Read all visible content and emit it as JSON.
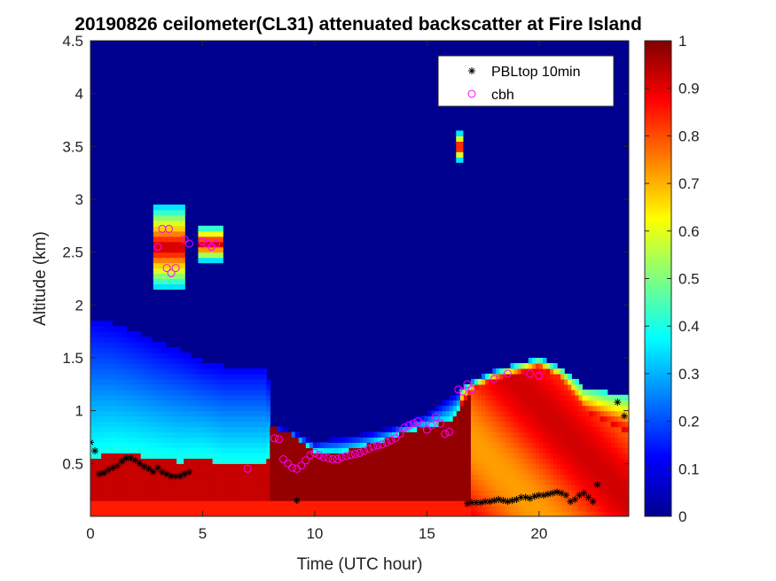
{
  "chart_data": {
    "type": "heatmap",
    "title": "20190826 ceilometer(CL31) attenuated backscatter at Fire Island",
    "xlabel": "Time (UTC hour)",
    "ylabel": "Altitude (km)",
    "xlim": [
      0,
      24
    ],
    "ylim": [
      0,
      4.5
    ],
    "x_ticks": [
      0,
      5,
      10,
      15,
      20
    ],
    "y_ticks": [
      0.5,
      1,
      1.5,
      2,
      2.5,
      3,
      3.5,
      4,
      4.5
    ],
    "colorbar": {
      "colormap": "jet",
      "range": [
        0,
        1
      ],
      "ticks": [
        0,
        0.1,
        0.2,
        0.3,
        0.4,
        0.5,
        0.6,
        0.7,
        0.8,
        0.9,
        1
      ]
    },
    "legend": {
      "placement": "top-right",
      "entries": [
        {
          "label": "PBLtop 10min",
          "marker": "asterisk",
          "color": "#000000"
        },
        {
          "label": "cbh",
          "marker": "circle",
          "color": "#ff00ff"
        }
      ]
    },
    "layer_profile": {
      "time_h": [
        0,
        1,
        2,
        3,
        4,
        5,
        6,
        7,
        7.9,
        8,
        9,
        10,
        11,
        12,
        13,
        14,
        15,
        16,
        17,
        18,
        19,
        20,
        21,
        22,
        23,
        24
      ],
      "boundary_km": [
        1.85,
        1.8,
        1.72,
        1.62,
        1.55,
        1.45,
        1.4,
        1.4,
        1.4,
        0.85,
        0.8,
        0.68,
        0.72,
        0.75,
        0.8,
        0.86,
        0.95,
        1.1,
        1.25,
        1.35,
        1.42,
        1.48,
        1.38,
        1.2,
        1.15,
        1.12
      ],
      "dense_top_km": [
        0.55,
        0.6,
        0.58,
        0.55,
        0.52,
        0.55,
        0.5,
        0.5,
        0.5,
        0.85,
        0.78,
        0.62,
        0.6,
        0.65,
        0.72,
        0.8,
        0.85,
        0.9,
        1.2,
        1.3,
        1.35,
        1.42,
        1.3,
        1.0,
        0.9,
        0.8
      ]
    },
    "elevated_cloud_patches": [
      {
        "t_start": 2.8,
        "t_end": 4.2,
        "alt_low": 2.15,
        "alt_high": 2.9
      },
      {
        "t_start": 4.8,
        "t_end": 5.8,
        "alt_low": 2.4,
        "alt_high": 2.72
      },
      {
        "t_start": 16.3,
        "t_end": 16.6,
        "alt_low": 3.35,
        "alt_high": 3.6
      }
    ],
    "series": [
      {
        "name": "PBLtop 10min",
        "points": [
          [
            0.0,
            0.7
          ],
          [
            0.2,
            0.62
          ],
          [
            0.4,
            0.4
          ],
          [
            0.6,
            0.41
          ],
          [
            0.8,
            0.44
          ],
          [
            1.0,
            0.46
          ],
          [
            1.2,
            0.48
          ],
          [
            1.4,
            0.52
          ],
          [
            1.6,
            0.55
          ],
          [
            1.8,
            0.55
          ],
          [
            2.0,
            0.53
          ],
          [
            2.2,
            0.5
          ],
          [
            2.4,
            0.47
          ],
          [
            2.6,
            0.45
          ],
          [
            2.8,
            0.42
          ],
          [
            3.0,
            0.46
          ],
          [
            3.2,
            0.42
          ],
          [
            3.4,
            0.4
          ],
          [
            3.6,
            0.38
          ],
          [
            3.8,
            0.38
          ],
          [
            4.0,
            0.38
          ],
          [
            4.2,
            0.4
          ],
          [
            4.4,
            0.42
          ],
          [
            9.2,
            0.15
          ],
          [
            16.8,
            0.12
          ],
          [
            17.0,
            0.13
          ],
          [
            17.2,
            0.13
          ],
          [
            17.4,
            0.13
          ],
          [
            17.6,
            0.14
          ],
          [
            17.8,
            0.14
          ],
          [
            18.0,
            0.15
          ],
          [
            18.2,
            0.16
          ],
          [
            18.4,
            0.15
          ],
          [
            18.6,
            0.14
          ],
          [
            18.8,
            0.15
          ],
          [
            19.0,
            0.16
          ],
          [
            19.2,
            0.18
          ],
          [
            19.4,
            0.18
          ],
          [
            19.6,
            0.17
          ],
          [
            19.8,
            0.19
          ],
          [
            20.0,
            0.2
          ],
          [
            20.2,
            0.2
          ],
          [
            20.4,
            0.21
          ],
          [
            20.6,
            0.22
          ],
          [
            20.8,
            0.23
          ],
          [
            21.0,
            0.22
          ],
          [
            21.2,
            0.2
          ],
          [
            21.4,
            0.14
          ],
          [
            21.6,
            0.16
          ],
          [
            21.8,
            0.2
          ],
          [
            22.0,
            0.22
          ],
          [
            22.2,
            0.18
          ],
          [
            22.4,
            0.14
          ],
          [
            22.6,
            0.3
          ],
          [
            23.5,
            1.08
          ],
          [
            23.8,
            0.95
          ]
        ]
      },
      {
        "name": "cbh",
        "points": [
          [
            3.0,
            2.55
          ],
          [
            3.2,
            2.72
          ],
          [
            3.4,
            2.35
          ],
          [
            3.5,
            2.72
          ],
          [
            3.6,
            2.3
          ],
          [
            3.8,
            2.35
          ],
          [
            4.2,
            2.62
          ],
          [
            4.4,
            2.58
          ],
          [
            5.0,
            2.6
          ],
          [
            5.2,
            2.58
          ],
          [
            5.4,
            2.55
          ],
          [
            5.6,
            2.58
          ],
          [
            7.0,
            0.45
          ],
          [
            8.2,
            0.74
          ],
          [
            8.4,
            0.73
          ],
          [
            8.6,
            0.54
          ],
          [
            8.8,
            0.5
          ],
          [
            9.0,
            0.46
          ],
          [
            9.2,
            0.45
          ],
          [
            9.4,
            0.48
          ],
          [
            9.6,
            0.53
          ],
          [
            9.8,
            0.58
          ],
          [
            10.0,
            0.6
          ],
          [
            10.2,
            0.58
          ],
          [
            10.4,
            0.56
          ],
          [
            10.6,
            0.55
          ],
          [
            10.8,
            0.54
          ],
          [
            11.0,
            0.54
          ],
          [
            11.2,
            0.56
          ],
          [
            11.4,
            0.57
          ],
          [
            11.6,
            0.58
          ],
          [
            11.8,
            0.59
          ],
          [
            12.0,
            0.6
          ],
          [
            12.2,
            0.62
          ],
          [
            12.4,
            0.64
          ],
          [
            12.6,
            0.66
          ],
          [
            12.8,
            0.67
          ],
          [
            13.0,
            0.68
          ],
          [
            13.2,
            0.7
          ],
          [
            13.4,
            0.72
          ],
          [
            13.6,
            0.74
          ],
          [
            13.8,
            0.78
          ],
          [
            14.0,
            0.84
          ],
          [
            14.2,
            0.86
          ],
          [
            14.4,
            0.88
          ],
          [
            14.6,
            0.9
          ],
          [
            14.8,
            0.87
          ],
          [
            15.0,
            0.82
          ],
          [
            15.2,
            0.86
          ],
          [
            15.4,
            0.94
          ],
          [
            15.6,
            0.88
          ],
          [
            15.8,
            0.78
          ],
          [
            16.0,
            0.8
          ],
          [
            16.4,
            1.2
          ],
          [
            16.6,
            1.18
          ],
          [
            16.8,
            1.25
          ],
          [
            17.0,
            1.2
          ],
          [
            18.0,
            1.3
          ],
          [
            18.6,
            1.35
          ],
          [
            19.6,
            1.35
          ],
          [
            20.0,
            1.33
          ]
        ]
      }
    ]
  }
}
